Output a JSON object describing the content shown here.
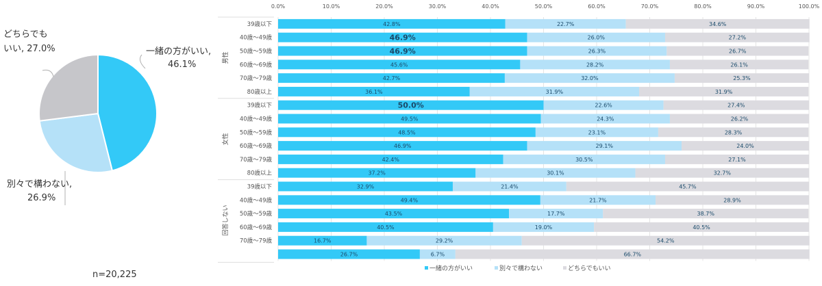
{
  "chart_data": [
    {
      "type": "pie",
      "slices": [
        {
          "label": "一緒の方がいい,",
          "value_label": "46.1%",
          "value": 46.1,
          "color": "#33c9f7"
        },
        {
          "label": "別々で構わない,",
          "value_label": "26.9%",
          "value": 26.9,
          "color": "#b5e1f8"
        },
        {
          "label": "どちらでも",
          "label2": "いい, 27.0%",
          "value": 27.0,
          "color": "#c6c6ca"
        }
      ],
      "note": "n=20,225"
    },
    {
      "type": "bar",
      "orientation": "horizontal",
      "stacked": true,
      "xlim": [
        0,
        100
      ],
      "x_ticks": [
        "0.0%",
        "10.0%",
        "20.0%",
        "30.0%",
        "40.0%",
        "50.0%",
        "60.0%",
        "70.0%",
        "80.0%",
        "90.0%",
        "100.0%"
      ],
      "grid": true,
      "legend_position": "bottom",
      "series_names": [
        "一緒の方がいい",
        "別々で構わない",
        "どちらでもいい"
      ],
      "series_colors": [
        "#33c9f7",
        "#b5e1f8",
        "#dcdbe0"
      ],
      "groups": [
        {
          "name": "男性",
          "rows": [
            {
              "label": "39歳以下",
              "values": [
                42.8,
                22.7,
                34.6
              ],
              "bold": false
            },
            {
              "label": "40歳～49歳",
              "values": [
                46.9,
                26.0,
                27.2
              ],
              "bold": true
            },
            {
              "label": "50歳～59歳",
              "values": [
                46.9,
                26.3,
                26.7
              ],
              "bold": true
            },
            {
              "label": "60歳～69歳",
              "values": [
                45.6,
                28.2,
                26.1
              ],
              "bold": false
            },
            {
              "label": "70歳～79歳",
              "values": [
                42.7,
                32.0,
                25.3
              ],
              "bold": false
            },
            {
              "label": "80歳以上",
              "values": [
                36.1,
                31.9,
                31.9
              ],
              "bold": false
            }
          ]
        },
        {
          "name": "女性",
          "rows": [
            {
              "label": "39歳以下",
              "values": [
                50.0,
                22.6,
                27.4
              ],
              "bold": true
            },
            {
              "label": "40歳～49歳",
              "values": [
                49.5,
                24.3,
                26.2
              ],
              "bold": false
            },
            {
              "label": "50歳～59歳",
              "values": [
                48.5,
                23.1,
                28.3
              ],
              "bold": false
            },
            {
              "label": "60歳～69歳",
              "values": [
                46.9,
                29.1,
                24.0
              ],
              "bold": false
            },
            {
              "label": "70歳～79歳",
              "values": [
                42.4,
                30.5,
                27.1
              ],
              "bold": false
            },
            {
              "label": "80歳以上",
              "values": [
                37.2,
                30.1,
                32.7
              ],
              "bold": false
            }
          ]
        },
        {
          "name": "回答しない",
          "rows": [
            {
              "label": "39歳以下",
              "values": [
                32.9,
                21.4,
                45.7
              ],
              "bold": false
            },
            {
              "label": "40歳～49歳",
              "values": [
                49.4,
                21.7,
                28.9
              ],
              "bold": false
            },
            {
              "label": "50歳～59歳",
              "values": [
                43.5,
                17.7,
                38.7
              ],
              "bold": false
            },
            {
              "label": "60歳～69歳",
              "values": [
                40.5,
                19.0,
                40.5
              ],
              "bold": false
            },
            {
              "label": "70歳～79歳",
              "values": [
                16.7,
                29.2,
                54.2
              ],
              "bold": false
            },
            {
              "label": "",
              "values": [
                26.7,
                6.7,
                66.7
              ],
              "bold": false
            }
          ]
        }
      ]
    }
  ]
}
